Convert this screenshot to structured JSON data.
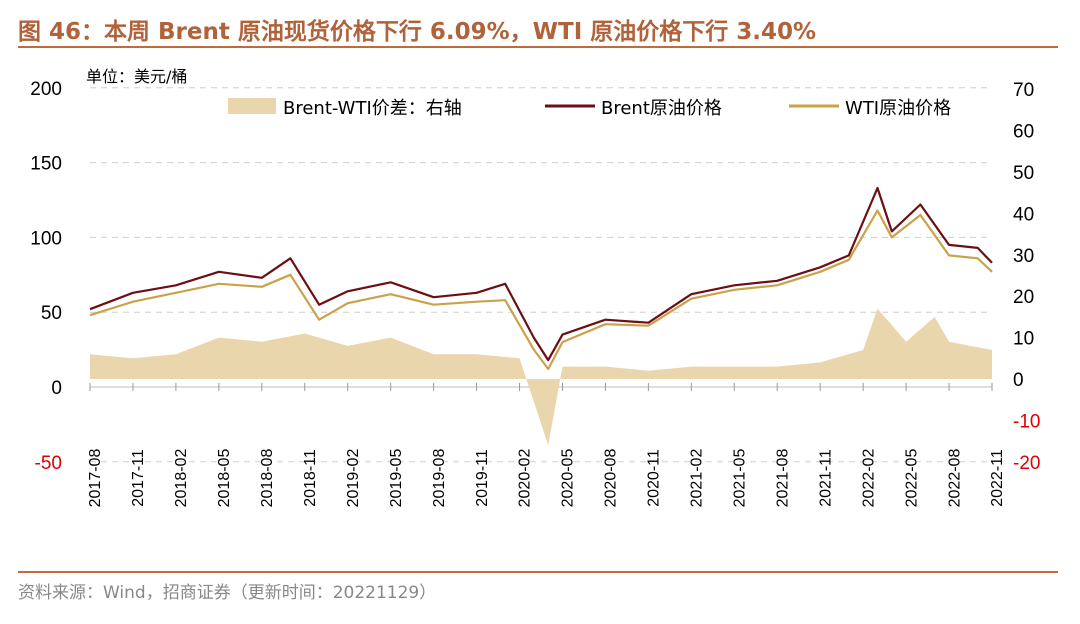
{
  "title": "图 46：本周 Brent 原油现货价格下行 6.09%，WTI 原油价格下行 3.40%",
  "source": "资料来源：Wind，招商证券（更新时间：20221129）",
  "chart_data": {
    "type": "line",
    "unit_label": "单位：美元/桶",
    "x_ticks": [
      "2017-08",
      "2017-11",
      "2018-02",
      "2018-05",
      "2018-08",
      "2018-11",
      "2019-02",
      "2019-05",
      "2019-08",
      "2019-11",
      "2020-02",
      "2020-05",
      "2020-08",
      "2020-11",
      "2021-02",
      "2021-05",
      "2021-08",
      "2021-11",
      "2022-02",
      "2022-05",
      "2022-08",
      "2022-11"
    ],
    "y_left": {
      "ticks": [
        "200",
        "150",
        "100",
        "50",
        "0",
        "-50"
      ],
      "range": [
        -50,
        200
      ]
    },
    "y_right": {
      "ticks": [
        "70",
        "60",
        "50",
        "40",
        "30",
        "20",
        "10",
        "0",
        "-10",
        "-20"
      ],
      "range": [
        -20,
        70
      ]
    },
    "grid": "horizontal-dashed",
    "legend_position": "top",
    "colors": {
      "brent": "#6b0f14",
      "wti": "#c9a24a",
      "spread": "#e9d6ac",
      "negative_tick": "#e00000",
      "accent": "#b0623a"
    },
    "series": [
      {
        "name": "Brent-WTI价差：右轴",
        "axis": "right",
        "style": "area",
        "x": [
          "2017-08",
          "2017-11",
          "2018-02",
          "2018-05",
          "2018-08",
          "2018-11",
          "2019-02",
          "2019-05",
          "2019-08",
          "2019-11",
          "2020-02",
          "2020-04",
          "2020-05",
          "2020-08",
          "2020-11",
          "2021-02",
          "2021-05",
          "2021-08",
          "2021-11",
          "2022-02",
          "2022-03",
          "2022-05",
          "2022-07",
          "2022-08",
          "2022-11"
        ],
        "values": [
          6,
          5,
          6,
          10,
          9,
          11,
          8,
          10,
          6,
          6,
          5,
          -16,
          3,
          3,
          2,
          3,
          3,
          3,
          4,
          7,
          17,
          9,
          15,
          9,
          7
        ]
      },
      {
        "name": "Brent原油价格",
        "axis": "left",
        "style": "line",
        "x": [
          "2017-08",
          "2017-11",
          "2018-02",
          "2018-05",
          "2018-08",
          "2018-10",
          "2018-12",
          "2019-02",
          "2019-05",
          "2019-08",
          "2019-11",
          "2020-01",
          "2020-03",
          "2020-04",
          "2020-05",
          "2020-08",
          "2020-11",
          "2021-02",
          "2021-05",
          "2021-08",
          "2021-11",
          "2022-01",
          "2022-03",
          "2022-04",
          "2022-06",
          "2022-08",
          "2022-10",
          "2022-11"
        ],
        "values": [
          52,
          63,
          68,
          77,
          73,
          86,
          55,
          64,
          70,
          60,
          63,
          69,
          33,
          18,
          35,
          45,
          43,
          62,
          68,
          71,
          80,
          88,
          133,
          104,
          122,
          95,
          93,
          83
        ]
      },
      {
        "name": "WTI原油价格",
        "axis": "left",
        "style": "line",
        "x": [
          "2017-08",
          "2017-11",
          "2018-02",
          "2018-05",
          "2018-08",
          "2018-10",
          "2018-12",
          "2019-02",
          "2019-05",
          "2019-08",
          "2019-11",
          "2020-01",
          "2020-03",
          "2020-04",
          "2020-05",
          "2020-08",
          "2020-11",
          "2021-02",
          "2021-05",
          "2021-08",
          "2021-11",
          "2022-01",
          "2022-03",
          "2022-04",
          "2022-06",
          "2022-08",
          "2022-10",
          "2022-11"
        ],
        "values": [
          48,
          57,
          63,
          69,
          67,
          75,
          45,
          56,
          62,
          55,
          57,
          58,
          25,
          12,
          30,
          42,
          41,
          59,
          65,
          68,
          77,
          85,
          118,
          100,
          115,
          88,
          86,
          77
        ]
      }
    ]
  }
}
